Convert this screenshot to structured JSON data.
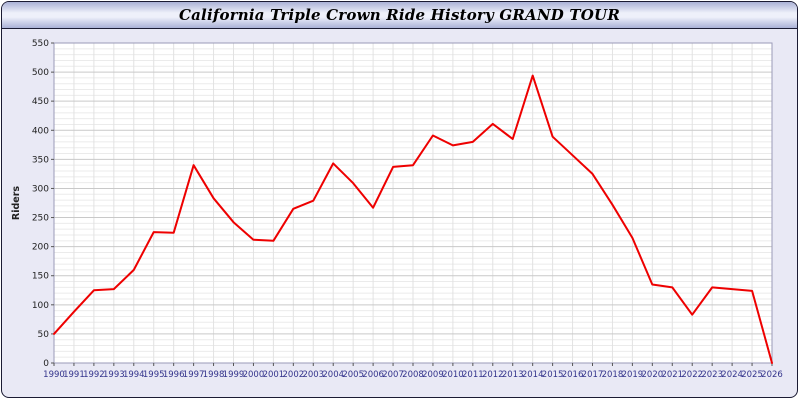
{
  "window": {
    "title": "California Triple Crown Ride History GRAND TOUR"
  },
  "colors": {
    "page_bg": "#e9e9f5",
    "plot_bg": "#ffffff",
    "plot_border": "#9a9ab8",
    "grid_major": "#c9c9c9",
    "grid_minor": "#ebebeb",
    "grid_vertical": "#e2e2e2",
    "line": "#ee0000",
    "axis_text": "#34348c",
    "tick_text": "#222222"
  },
  "chart_data": {
    "type": "line",
    "title": "California Triple Crown Ride History GRAND TOUR",
    "xlabel": "",
    "ylabel": "Riders",
    "ylim": [
      0,
      550
    ],
    "y_tick_step": 50,
    "y_minor_step": 10,
    "grid": true,
    "legend_position": "none",
    "x": [
      1990,
      1991,
      1992,
      1993,
      1994,
      1995,
      1996,
      1997,
      1998,
      1999,
      2000,
      2001,
      2002,
      2003,
      2004,
      2005,
      2006,
      2007,
      2008,
      2009,
      2010,
      2011,
      2012,
      2013,
      2014,
      2015,
      2016,
      2017,
      2018,
      2019,
      2020,
      2021,
      2022,
      2023,
      2024,
      2025,
      2026
    ],
    "series": [
      {
        "name": "Riders",
        "values": [
          50,
          88,
          125,
          127,
          160,
          225,
          224,
          340,
          283,
          242,
          212,
          210,
          265,
          279,
          343,
          309,
          267,
          337,
          340,
          391,
          374,
          380,
          411,
          385,
          494,
          389,
          357,
          325,
          272,
          215,
          135,
          130,
          83,
          130,
          127,
          124,
          0
        ]
      }
    ]
  }
}
